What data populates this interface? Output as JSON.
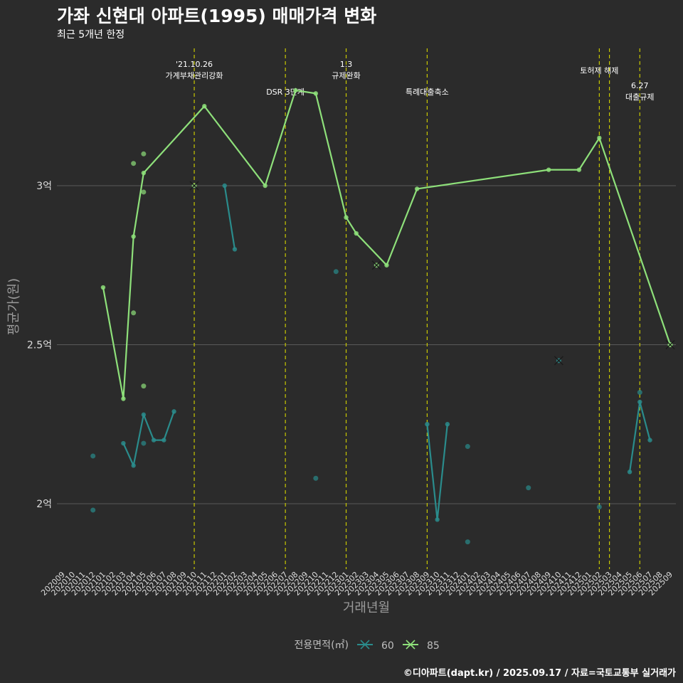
{
  "title": "가좌 신현대 아파트(1995) 매매가격 변화",
  "subtitle": "최근 5개년 한정",
  "caption": "©디아파트(dapt.kr) / 2025.09.17 / 자료=국토교통부 실거래가",
  "colors": {
    "background": "#2b2b2b",
    "grid": "#5a5a5a",
    "event_line": "#c8c800",
    "series_60": "#2a8c8c",
    "series_85": "#8ee07a",
    "text": "#ffffff",
    "axis_text": "#bfbfbf"
  },
  "chart_data": {
    "type": "line",
    "title": "가좌 신현대 아파트(1995) 매매가격 변화",
    "subtitle": "최근 5개년 한정",
    "xlabel": "거래년월",
    "ylabel": "평균가(원)",
    "x": [
      "202009",
      "202010",
      "202011",
      "202012",
      "202101",
      "202102",
      "202103",
      "202104",
      "202105",
      "202106",
      "202107",
      "202108",
      "202109",
      "202110",
      "202111",
      "202112",
      "202201",
      "202202",
      "202203",
      "202204",
      "202205",
      "202206",
      "202207",
      "202208",
      "202209",
      "202210",
      "202211",
      "202212",
      "202301",
      "202302",
      "202303",
      "202304",
      "202305",
      "202306",
      "202307",
      "202308",
      "202309",
      "202310",
      "202311",
      "202312",
      "202401",
      "202402",
      "202403",
      "202404",
      "202405",
      "202406",
      "202407",
      "202408",
      "202409",
      "202410",
      "202411",
      "202412",
      "202501",
      "202502",
      "202503",
      "202504",
      "202505",
      "202506",
      "202507",
      "202508",
      "202509"
    ],
    "yticks": [
      {
        "value": 2.0,
        "label": "2억"
      },
      {
        "value": 2.5,
        "label": "2.5억"
      },
      {
        "value": 3.0,
        "label": "3억"
      }
    ],
    "ylim": [
      1.78,
      3.42
    ],
    "grid": true,
    "legend": {
      "title": "전용면적(㎡)",
      "position": "bottom",
      "entries": [
        "60",
        "85"
      ]
    },
    "series": [
      {
        "name": "60",
        "color": "#2a8c8c",
        "lines": [
          [
            [
              "202103",
              2.19
            ],
            [
              "202104",
              2.12
            ],
            [
              "202105",
              2.28
            ],
            [
              "202106",
              2.2
            ],
            [
              "202107",
              2.2
            ],
            [
              "202108",
              2.29
            ]
          ],
          [
            [
              "202201",
              3.0
            ],
            [
              "202202",
              2.8
            ]
          ],
          [
            [
              "202309",
              2.25
            ],
            [
              "202310",
              1.95
            ],
            [
              "202311",
              2.25
            ]
          ],
          [
            [
              "202505",
              2.1
            ],
            [
              "202506",
              2.32
            ],
            [
              "202507",
              2.2
            ]
          ]
        ],
        "points": [
          [
            "202012",
            2.15
          ],
          [
            "202012",
            1.98
          ],
          [
            "202105",
            2.19
          ],
          [
            "202210",
            2.08
          ],
          [
            "202212",
            2.73
          ],
          [
            "202401",
            2.18
          ],
          [
            "202401",
            1.88
          ],
          [
            "202407",
            2.05
          ],
          [
            "202502",
            1.99
          ],
          [
            "202506",
            2.35
          ]
        ],
        "marked": [
          [
            "202410",
            2.45
          ]
        ]
      },
      {
        "name": "85",
        "color": "#8ee07a",
        "lines": [
          [
            [
              "202101",
              2.68
            ],
            [
              "202103",
              2.33
            ],
            [
              "202104",
              2.84
            ],
            [
              "202105",
              3.04
            ],
            [
              "202111",
              3.25
            ],
            [
              "202205",
              3.0
            ],
            [
              "202208",
              3.3
            ],
            [
              "202210",
              3.29
            ],
            [
              "202301",
              2.9
            ],
            [
              "202302",
              2.85
            ],
            [
              "202305",
              2.75
            ],
            [
              "202308",
              2.99
            ],
            [
              "202409",
              3.05
            ],
            [
              "202412",
              3.05
            ],
            [
              "202502",
              3.15
            ],
            [
              "202509",
              2.5
            ]
          ]
        ],
        "points": [
          [
            "202104",
            3.07
          ],
          [
            "202104",
            2.6
          ],
          [
            "202105",
            3.1
          ],
          [
            "202105",
            2.98
          ],
          [
            "202105",
            2.37
          ]
        ],
        "marked": [
          [
            "202110",
            3.0
          ],
          [
            "202304",
            2.75
          ],
          [
            "202509",
            2.5
          ]
        ]
      }
    ],
    "events": [
      {
        "x": "202110",
        "offset": 0.0,
        "text": [
          "'21.10.26",
          "가계부채관리강화"
        ],
        "row": 0
      },
      {
        "x": "202207",
        "offset": 0.0,
        "text": [
          "DSR 3단계"
        ],
        "row": 2
      },
      {
        "x": "202301",
        "offset": 0.0,
        "text": [
          "1.3",
          "규제완화"
        ],
        "row": 0
      },
      {
        "x": "202309",
        "offset": 0.0,
        "text": [
          "특례대출축소"
        ],
        "row": 2
      },
      {
        "x": "202502",
        "offset": 0.0,
        "text": [
          "토허제 해제"
        ],
        "row": 1
      },
      {
        "x": "202503",
        "offset": 0.0,
        "text": [],
        "row": 1
      },
      {
        "x": "202506",
        "offset": 0.0,
        "text": [
          "6.27",
          "대출규제"
        ],
        "row": 3
      }
    ]
  }
}
